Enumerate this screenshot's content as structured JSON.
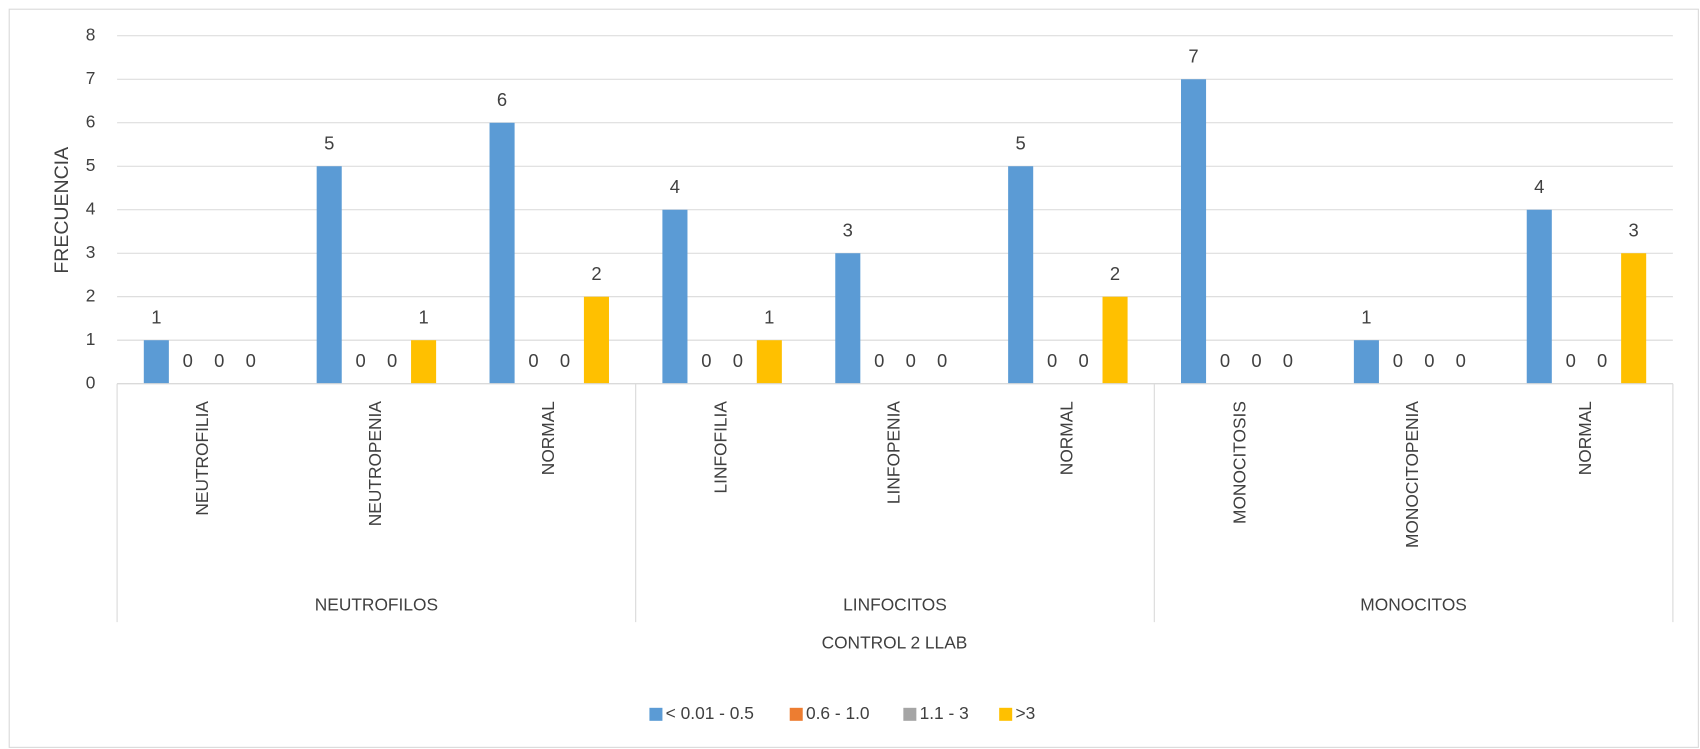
{
  "chart_data": {
    "type": "bar",
    "x_title": "CONTROL 2 LLAB",
    "y_title": "FRECUENCIA",
    "groups": [
      {
        "name": "NEUTROFILOS",
        "categories": [
          "NEUTROFILIA",
          "NEUTROPENIA",
          "NORMAL"
        ]
      },
      {
        "name": "LINFOCITOS",
        "categories": [
          "LINFOFILIA",
          "LINFOPENIA",
          "NORMAL"
        ]
      },
      {
        "name": "MONOCITOS",
        "categories": [
          "MONOCITOSIS",
          "MONOCITOPENIA",
          "NORMAL"
        ]
      }
    ],
    "series": [
      {
        "name": "< 0.01 - 0.5",
        "color": "#5b9bd5",
        "values": [
          1,
          5,
          6,
          4,
          3,
          5,
          7,
          1,
          4
        ]
      },
      {
        "name": "0.6 - 1.0",
        "color": "#ed7d31",
        "values": [
          0,
          0,
          0,
          0,
          0,
          0,
          0,
          0,
          0
        ]
      },
      {
        "name": "1.1 - 3",
        "color": "#a5a5a5",
        "values": [
          0,
          0,
          0,
          0,
          0,
          0,
          0,
          0,
          0
        ]
      },
      {
        "name": ">3",
        "color": "#ffc000",
        "values": [
          0,
          1,
          2,
          1,
          0,
          2,
          0,
          0,
          3
        ]
      }
    ],
    "ylim": [
      0,
      8
    ],
    "yticks": [
      0,
      1,
      2,
      3,
      4,
      5,
      6,
      7,
      8
    ],
    "grid": true,
    "data_labels": true,
    "legend": "bottom"
  }
}
